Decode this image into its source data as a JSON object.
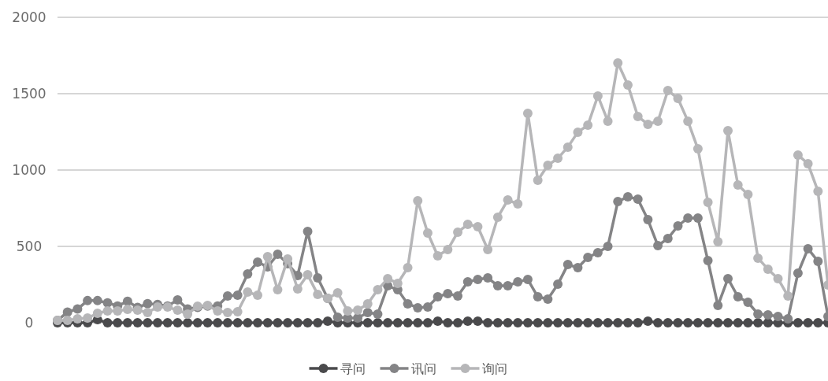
{
  "chart_data": {
    "type": "line",
    "categories": [
      null,
      null,
      null,
      null,
      null,
      null,
      null,
      null,
      null,
      null,
      null,
      null,
      null,
      null,
      null,
      null,
      null,
      null,
      null,
      null,
      null,
      null,
      null,
      null,
      null,
      null,
      null,
      null,
      null,
      null,
      null,
      null,
      null,
      null,
      null,
      null,
      null,
      null,
      null,
      null,
      null,
      null,
      null,
      null,
      null,
      null,
      null,
      null,
      null,
      null,
      null,
      null,
      null,
      null,
      null,
      null,
      null,
      null,
      null,
      null,
      null,
      null,
      null,
      null,
      null,
      null,
      null,
      null,
      null,
      null,
      null,
      null,
      null,
      null,
      null,
      null,
      null,
      null
    ],
    "series": [
      {
        "name": "寻问",
        "color": "#4a4a4c",
        "values": [
          0,
          0,
          0,
          0,
          20,
          0,
          0,
          0,
          0,
          0,
          0,
          0,
          0,
          0,
          0,
          0,
          0,
          0,
          0,
          0,
          0,
          0,
          0,
          0,
          0,
          0,
          0,
          10,
          0,
          0,
          0,
          0,
          0,
          0,
          0,
          0,
          0,
          0,
          10,
          0,
          0,
          10,
          10,
          0,
          0,
          0,
          0,
          0,
          0,
          0,
          0,
          0,
          0,
          0,
          0,
          0,
          0,
          0,
          0,
          10,
          0,
          0,
          0,
          0,
          0,
          0,
          0,
          0,
          0,
          0,
          0,
          0,
          0,
          0,
          0,
          0,
          0,
          0
        ]
      },
      {
        "name": "讯问",
        "color": "#848486",
        "values": [
          15,
          70,
          90,
          145,
          145,
          130,
          110,
          140,
          100,
          125,
          120,
          110,
          150,
          90,
          100,
          110,
          110,
          175,
          180,
          320,
          397,
          366,
          448,
          387,
          309,
          598,
          294,
          160,
          36,
          31,
          31,
          67,
          57,
          242,
          216,
          124,
          98,
          103,
          170,
          191,
          175,
          268,
          283,
          294,
          242,
          242,
          268,
          283,
          170,
          155,
          252,
          381,
          361,
          428,
          459,
          500,
          794,
          825,
          809,
          675,
          505,
          552,
          634,
          686,
          686,
          407,
          113,
          289,
          170,
          134,
          57,
          52,
          41,
          26,
          325,
          485,
          402,
          41
        ]
      },
      {
        "name": "询问",
        "color": "#b6b6b8",
        "values": [
          15,
          15,
          26,
          31,
          62,
          77,
          77,
          88,
          82,
          67,
          103,
          103,
          82,
          57,
          108,
          113,
          77,
          67,
          72,
          201,
          180,
          433,
          216,
          418,
          222,
          314,
          186,
          160,
          196,
          77,
          82,
          124,
          216,
          289,
          258,
          361,
          799,
          588,
          438,
          479,
          593,
          644,
          629,
          479,
          691,
          804,
          778,
          1371,
          933,
          1031,
          1077,
          1150,
          1248,
          1294,
          1485,
          1320,
          1701,
          1557,
          1351,
          1299,
          1320,
          1521,
          1469,
          1320,
          1139,
          789,
          531,
          1258,
          902,
          840,
          423,
          351,
          289,
          175,
          1098,
          1041,
          861,
          247
        ]
      }
    ],
    "ylim": [
      0,
      2000
    ],
    "yticks": [
      0,
      500,
      1000,
      1500,
      2000
    ],
    "grid": "y",
    "legend": "bottom",
    "marker": "circle",
    "line_style": "solid"
  }
}
